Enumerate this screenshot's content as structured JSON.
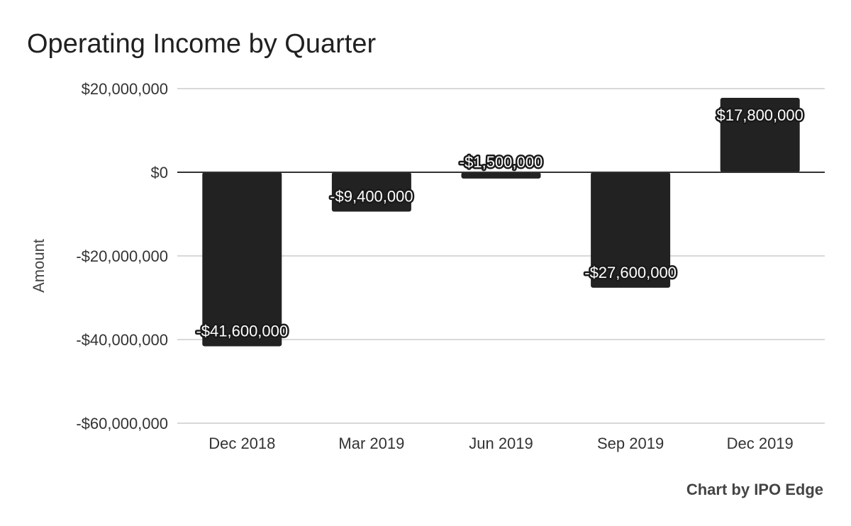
{
  "chart_data": {
    "type": "bar",
    "title": "Operating Income by Quarter",
    "xlabel": "",
    "ylabel": "Amount",
    "categories": [
      "Dec 2018",
      "Mar 2019",
      "Jun 2019",
      "Sep 2019",
      "Dec 2019"
    ],
    "values": [
      -41600000,
      -9400000,
      -1500000,
      -27600000,
      17800000
    ],
    "data_labels": [
      "-$41,600,000",
      "-$9,400,000",
      "-$1,500,000",
      "-$27,600,000",
      "$17,800,000"
    ],
    "ylim": [
      -60000000,
      20000000
    ],
    "yticks": [
      20000000,
      0,
      -20000000,
      -40000000,
      -60000000
    ],
    "ytick_labels": [
      "$20,000,000",
      "$0",
      "-$20,000,000",
      "-$40,000,000",
      "-$60,000,000"
    ],
    "grid": true,
    "legend": "none",
    "bar_color": "#222222"
  },
  "credit": "Chart by IPO Edge"
}
